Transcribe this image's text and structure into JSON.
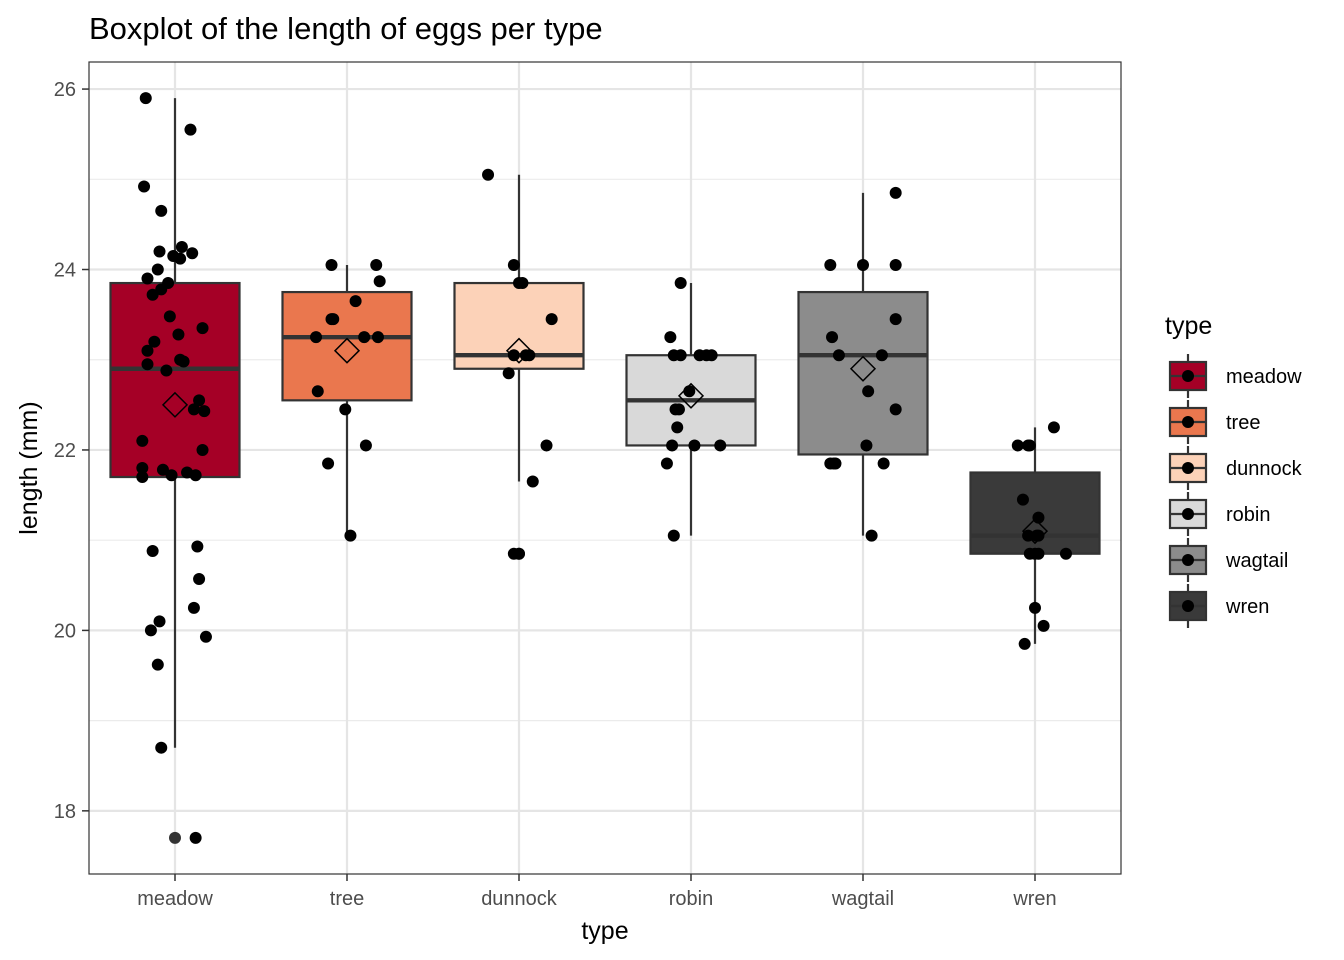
{
  "chart_data": {
    "type": "boxplot",
    "title": "Boxplot of the length of eggs per type",
    "xlabel": "type",
    "ylabel": "length (mm)",
    "ylim": [
      17.3,
      26.3
    ],
    "yticks": [
      18,
      20,
      22,
      24,
      26
    ],
    "grid": true,
    "legend": {
      "title": "type",
      "placement": "right",
      "entries": [
        "meadow",
        "tree",
        "dunnock",
        "robin",
        "wagtail",
        "wren"
      ]
    },
    "categories": [
      "meadow",
      "tree",
      "dunnock",
      "robin",
      "wagtail",
      "wren"
    ],
    "series": [
      {
        "name": "meadow",
        "color": "#a50026",
        "q1": 21.7,
        "median": 22.9,
        "q3": 23.85,
        "whisker_low": 18.7,
        "whisker_high": 25.9,
        "mean": 22.5,
        "outliers": [
          17.7
        ],
        "points": [
          [
            -0.17,
            25.9
          ],
          [
            0.09,
            25.55
          ],
          [
            -0.18,
            24.92
          ],
          [
            -0.08,
            24.65
          ],
          [
            0.04,
            24.25
          ],
          [
            -0.09,
            24.2
          ],
          [
            0.1,
            24.18
          ],
          [
            -0.01,
            24.15
          ],
          [
            0.03,
            24.12
          ],
          [
            -0.1,
            24.0
          ],
          [
            -0.16,
            23.9
          ],
          [
            -0.04,
            23.85
          ],
          [
            -0.08,
            23.78
          ],
          [
            -0.13,
            23.72
          ],
          [
            -0.03,
            23.48
          ],
          [
            0.16,
            23.35
          ],
          [
            -0.12,
            23.2
          ],
          [
            -0.16,
            23.1
          ],
          [
            0.02,
            23.28
          ],
          [
            0.03,
            23.0
          ],
          [
            0.05,
            22.98
          ],
          [
            -0.16,
            22.95
          ],
          [
            -0.05,
            22.88
          ],
          [
            0.14,
            22.55
          ],
          [
            0.11,
            22.45
          ],
          [
            0.17,
            22.43
          ],
          [
            -0.19,
            22.1
          ],
          [
            0.16,
            22.0
          ],
          [
            -0.19,
            21.8
          ],
          [
            -0.07,
            21.78
          ],
          [
            0.07,
            21.75
          ],
          [
            -0.19,
            21.7
          ],
          [
            -0.02,
            21.72
          ],
          [
            0.12,
            21.72
          ],
          [
            0.13,
            20.93
          ],
          [
            -0.13,
            20.88
          ],
          [
            0.14,
            20.57
          ],
          [
            0.11,
            20.25
          ],
          [
            -0.09,
            20.1
          ],
          [
            -0.14,
            20.0
          ],
          [
            0.18,
            19.93
          ],
          [
            -0.1,
            19.62
          ],
          [
            -0.08,
            18.7
          ],
          [
            0.12,
            17.7
          ]
        ]
      },
      {
        "name": "tree",
        "color": "#ea774e",
        "q1": 22.55,
        "median": 23.25,
        "q3": 23.75,
        "whisker_low": 21.05,
        "whisker_high": 24.05,
        "mean": 23.1,
        "outliers": [],
        "points": [
          [
            -0.09,
            24.05
          ],
          [
            0.17,
            24.05
          ],
          [
            0.19,
            23.87
          ],
          [
            0.05,
            23.65
          ],
          [
            -0.09,
            23.45
          ],
          [
            -0.08,
            23.45
          ],
          [
            -0.18,
            23.25
          ],
          [
            0.1,
            23.25
          ],
          [
            0.18,
            23.25
          ],
          [
            -0.17,
            22.65
          ],
          [
            -0.01,
            22.45
          ],
          [
            0.11,
            22.05
          ],
          [
            -0.11,
            21.85
          ],
          [
            0.02,
            21.05
          ]
        ]
      },
      {
        "name": "dunnock",
        "color": "#fcd2b8",
        "q1": 22.9,
        "median": 23.05,
        "q3": 23.85,
        "whisker_low": 21.65,
        "whisker_high": 25.05,
        "mean": 23.1,
        "outliers": [
          20.85
        ],
        "points": [
          [
            -0.18,
            25.05
          ],
          [
            -0.03,
            24.05
          ],
          [
            0.0,
            23.85
          ],
          [
            0.02,
            23.85
          ],
          [
            0.19,
            23.45
          ],
          [
            -0.03,
            23.05
          ],
          [
            0.04,
            23.05
          ],
          [
            0.06,
            23.05
          ],
          [
            -0.06,
            22.85
          ],
          [
            0.16,
            22.05
          ],
          [
            0.08,
            21.65
          ],
          [
            -0.03,
            20.85
          ],
          [
            0.0,
            20.85
          ]
        ]
      },
      {
        "name": "robin",
        "color": "#d9d9d9",
        "q1": 22.05,
        "median": 22.55,
        "q3": 23.05,
        "whisker_low": 21.05,
        "whisker_high": 23.85,
        "mean": 22.6,
        "outliers": [],
        "points": [
          [
            -0.06,
            23.85
          ],
          [
            -0.12,
            23.25
          ],
          [
            -0.1,
            23.05
          ],
          [
            -0.06,
            23.05
          ],
          [
            0.05,
            23.05
          ],
          [
            0.09,
            23.05
          ],
          [
            0.12,
            23.05
          ],
          [
            -0.01,
            22.65
          ],
          [
            -0.09,
            22.45
          ],
          [
            -0.07,
            22.45
          ],
          [
            -0.08,
            22.25
          ],
          [
            -0.11,
            22.05
          ],
          [
            0.02,
            22.05
          ],
          [
            0.17,
            22.05
          ],
          [
            -0.14,
            21.85
          ],
          [
            -0.1,
            21.05
          ]
        ]
      },
      {
        "name": "wagtail",
        "color": "#8c8c8c",
        "q1": 21.95,
        "median": 23.05,
        "q3": 23.75,
        "whisker_low": 21.05,
        "whisker_high": 24.85,
        "mean": 22.9,
        "outliers": [],
        "points": [
          [
            0.19,
            24.85
          ],
          [
            -0.19,
            24.05
          ],
          [
            0.0,
            24.05
          ],
          [
            0.19,
            24.05
          ],
          [
            0.19,
            23.45
          ],
          [
            -0.18,
            23.25
          ],
          [
            -0.14,
            23.05
          ],
          [
            0.11,
            23.05
          ],
          [
            0.03,
            22.65
          ],
          [
            0.19,
            22.45
          ],
          [
            0.02,
            22.05
          ],
          [
            -0.19,
            21.85
          ],
          [
            -0.17,
            21.85
          ],
          [
            -0.16,
            21.85
          ],
          [
            0.12,
            21.85
          ],
          [
            0.05,
            21.05
          ]
        ]
      },
      {
        "name": "wren",
        "color": "#3a3a3a",
        "q1": 20.85,
        "median": 21.05,
        "q3": 21.75,
        "whisker_low": 19.85,
        "whisker_high": 22.25,
        "mean": 21.1,
        "outliers": [],
        "points": [
          [
            0.11,
            22.25
          ],
          [
            -0.1,
            22.05
          ],
          [
            -0.04,
            22.05
          ],
          [
            -0.03,
            22.05
          ],
          [
            -0.07,
            21.45
          ],
          [
            0.02,
            21.25
          ],
          [
            -0.04,
            21.05
          ],
          [
            0.01,
            21.05
          ],
          [
            0.02,
            21.05
          ],
          [
            -0.03,
            20.85
          ],
          [
            0.0,
            20.85
          ],
          [
            0.02,
            20.85
          ],
          [
            0.18,
            20.85
          ],
          [
            0.0,
            20.25
          ],
          [
            0.05,
            20.05
          ],
          [
            -0.06,
            19.85
          ]
        ]
      }
    ]
  }
}
